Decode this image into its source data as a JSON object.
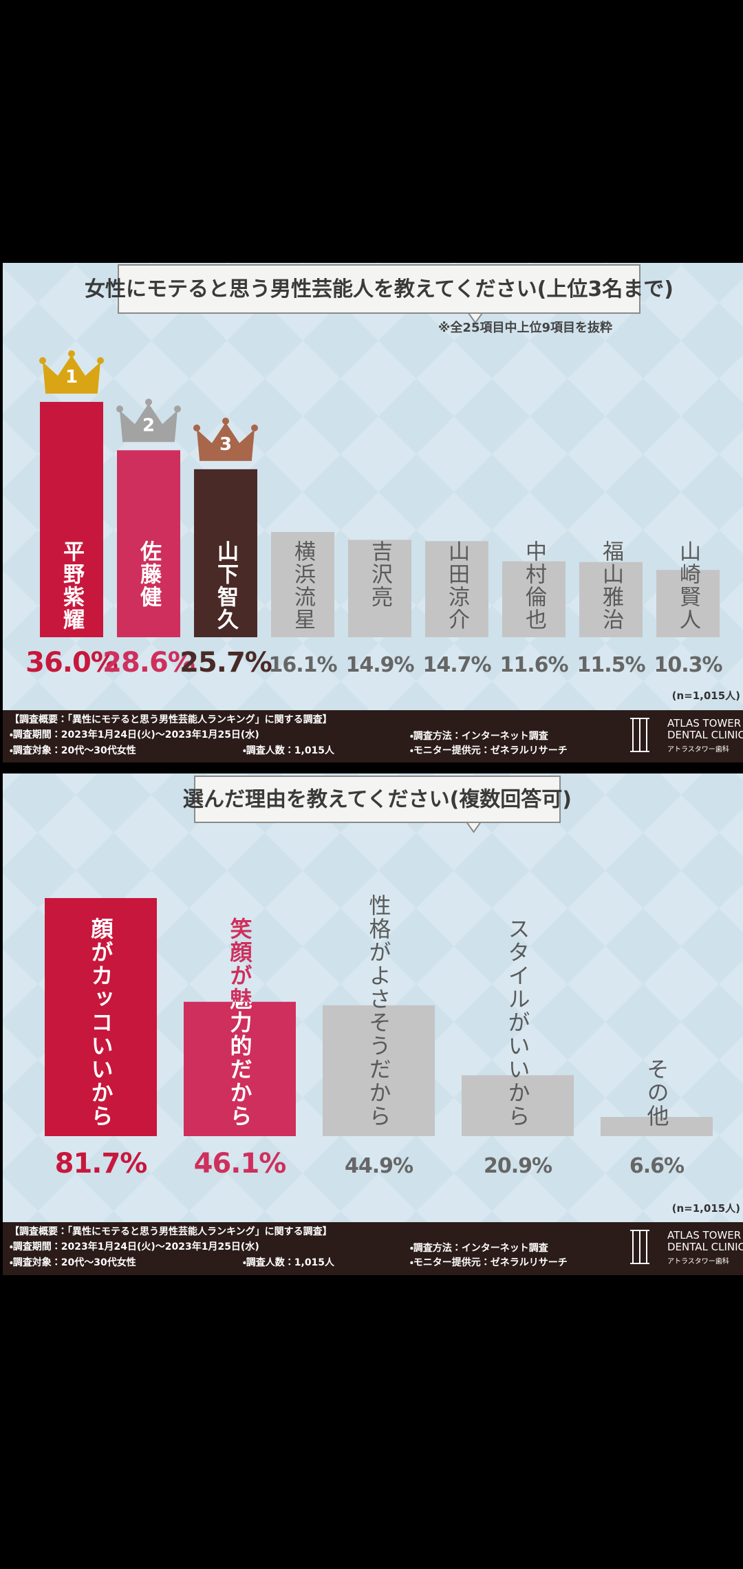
{
  "chart_data": [
    {
      "type": "bar",
      "title": "女性にモテると思う男性芸能人を教えてください(上位3名まで)",
      "note": "※全25項目中上位9項目を抜粋",
      "sample_note": "(n=1,015人)",
      "categories": [
        "平野紫耀",
        "佐藤健",
        "山下智久",
        "横浜流星",
        "吉沢亮",
        "山田涼介",
        "中村倫也",
        "福山雅治",
        "山崎賢人"
      ],
      "values": [
        36.0,
        28.6,
        25.7,
        16.1,
        14.9,
        14.7,
        11.6,
        11.5,
        10.3
      ],
      "value_labels": [
        "36.0%",
        "28.6%",
        "25.7%",
        "16.1%",
        "14.9%",
        "14.7%",
        "11.6%",
        "11.5%",
        "10.3%"
      ],
      "colors": [
        "#c8173c",
        "#cf2f5c",
        "#4a2a26",
        "#c4c4c4",
        "#c4c4c4",
        "#c4c4c4",
        "#c4c4c4",
        "#c4c4c4",
        "#c4c4c4"
      ],
      "ranks": [
        1,
        2,
        3
      ],
      "crown_colors": [
        "#d9a514",
        "#a3a3a3",
        "#a8664a"
      ]
    },
    {
      "type": "bar",
      "title": "選んだ理由を教えてください(複数回答可)",
      "sample_note": "(n=1,015人)",
      "categories": [
        "顔がカッコいいから",
        "笑顔が魅力的だから",
        "性格がよさそうだから",
        "スタイルがいいから",
        "その他"
      ],
      "values": [
        81.7,
        46.1,
        44.9,
        20.9,
        6.6
      ],
      "value_labels": [
        "81.7%",
        "46.1%",
        "44.9%",
        "20.9%",
        "6.6%"
      ],
      "colors": [
        "#c8173c",
        "#cf2f5c",
        "#c4c4c4",
        "#c4c4c4",
        "#c4c4c4"
      ]
    }
  ],
  "survey": {
    "heading": "【調査概要：「異性にモテると思う男性芸能人ランキング」に関する調査】",
    "period": "・調査期間：2023年1月24日(火)〜2023年1月25日(水)",
    "target": "・調査対象：20代〜30代女性",
    "count": "・調査人数：1,015人",
    "method": "・調査方法：インターネット調査",
    "provider": "・モニター提供元：ゼネラルリサーチ",
    "logo": [
      "ATLAS TOWER",
      "DENTAL CLINIC",
      "アトラスタワー歯科"
    ]
  }
}
